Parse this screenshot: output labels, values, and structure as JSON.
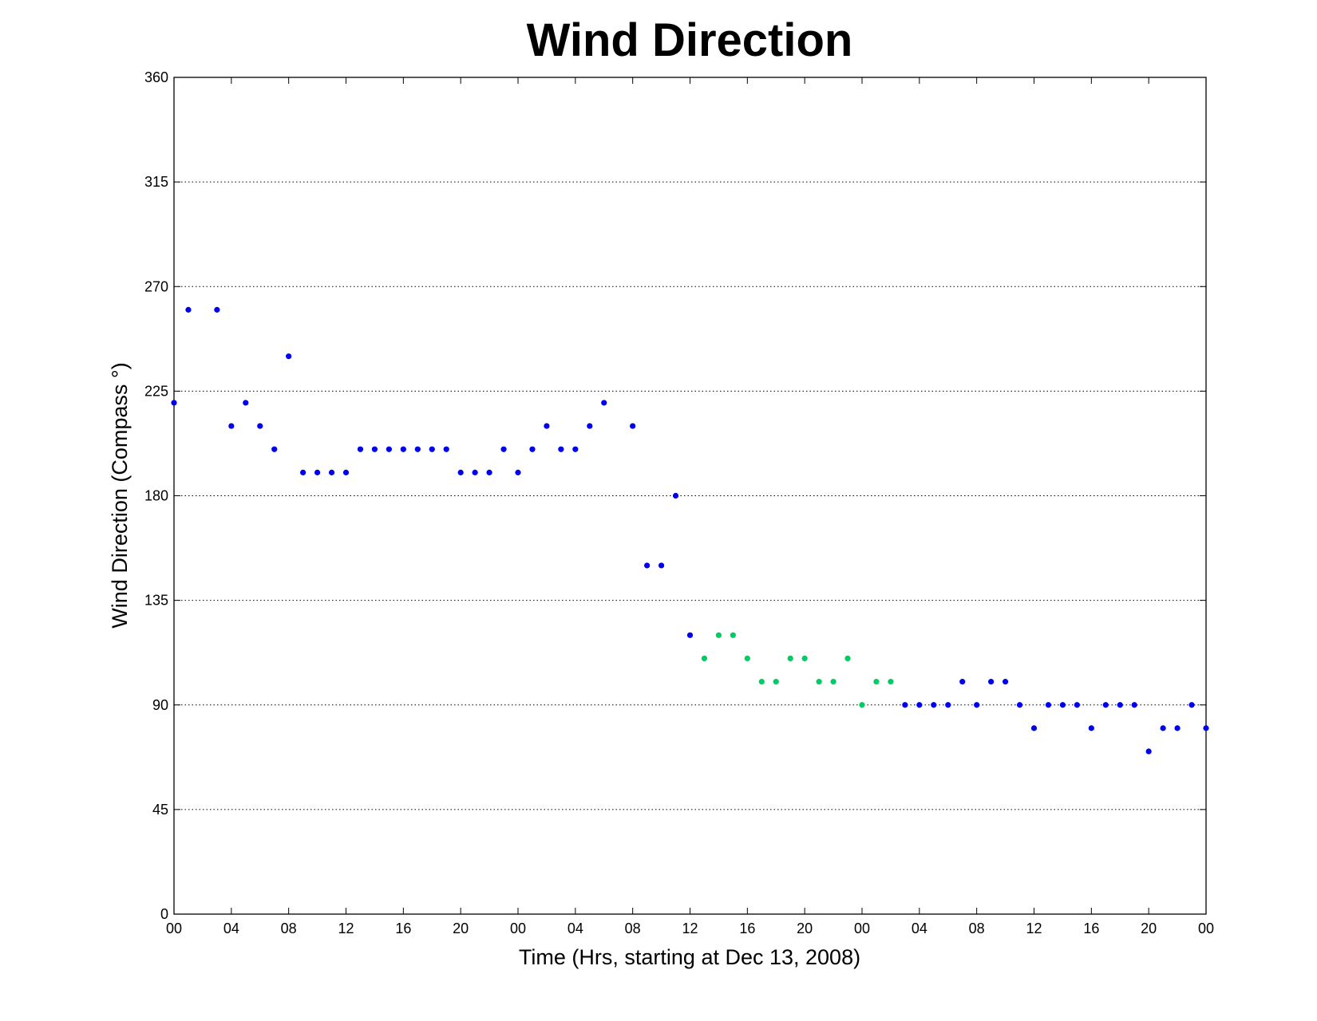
{
  "chart_data": {
    "type": "scatter",
    "title": "Wind Direction",
    "xlabel": "Time (Hrs, starting at Dec 13, 2008)",
    "ylabel": "Wind Direction (Compass  °)",
    "x_unit": "hours",
    "xlim": [
      0,
      72
    ],
    "ylim": [
      0,
      360
    ],
    "x_ticks": [
      0,
      4,
      8,
      12,
      16,
      20,
      24,
      28,
      32,
      36,
      40,
      44,
      48,
      52,
      56,
      60,
      64,
      68,
      72
    ],
    "x_tick_labels": [
      "00",
      "04",
      "08",
      "12",
      "16",
      "20",
      "00",
      "04",
      "08",
      "12",
      "16",
      "20",
      "00",
      "04",
      "08",
      "12",
      "16",
      "20",
      "00"
    ],
    "y_ticks": [
      0,
      45,
      90,
      135,
      180,
      225,
      270,
      315,
      360
    ],
    "y_tick_labels": [
      "0",
      "45",
      "90",
      "135",
      "180",
      "225",
      "270",
      "315",
      "360"
    ],
    "grid": "y-dotted",
    "legend": "none",
    "series": [
      {
        "color": "#0000ee",
        "points": [
          [
            0,
            220
          ],
          [
            1,
            260
          ],
          [
            3,
            260
          ],
          [
            4,
            210
          ],
          [
            5,
            220
          ],
          [
            6,
            210
          ],
          [
            7,
            200
          ],
          [
            8,
            240
          ],
          [
            9,
            190
          ],
          [
            10,
            190
          ],
          [
            11,
            190
          ],
          [
            12,
            190
          ],
          [
            13,
            200
          ],
          [
            14,
            200
          ],
          [
            15,
            200
          ],
          [
            16,
            200
          ],
          [
            17,
            200
          ],
          [
            18,
            200
          ],
          [
            19,
            200
          ],
          [
            20,
            190
          ],
          [
            21,
            190
          ],
          [
            22,
            190
          ],
          [
            23,
            200
          ],
          [
            24,
            190
          ],
          [
            25,
            200
          ],
          [
            26,
            210
          ],
          [
            27,
            200
          ],
          [
            28,
            200
          ],
          [
            29,
            210
          ],
          [
            30,
            220
          ],
          [
            32,
            210
          ],
          [
            33,
            150
          ],
          [
            34,
            150
          ],
          [
            35,
            180
          ],
          [
            36,
            120
          ],
          [
            51,
            90
          ],
          [
            52,
            90
          ],
          [
            53,
            90
          ],
          [
            54,
            90
          ],
          [
            55,
            100
          ],
          [
            56,
            90
          ],
          [
            57,
            100
          ],
          [
            58,
            100
          ],
          [
            59,
            90
          ],
          [
            60,
            80
          ],
          [
            61,
            90
          ],
          [
            62,
            90
          ],
          [
            63,
            90
          ],
          [
            64,
            80
          ],
          [
            65,
            90
          ],
          [
            66,
            90
          ],
          [
            67,
            90
          ],
          [
            68,
            70
          ],
          [
            69,
            80
          ],
          [
            70,
            80
          ],
          [
            71,
            90
          ],
          [
            72,
            80
          ]
        ]
      },
      {
        "color": "#00cc66",
        "points": [
          [
            37,
            110
          ],
          [
            38,
            120
          ],
          [
            39,
            120
          ],
          [
            40,
            110
          ],
          [
            41,
            100
          ],
          [
            42,
            100
          ],
          [
            43,
            110
          ],
          [
            44,
            110
          ],
          [
            45,
            100
          ],
          [
            46,
            100
          ],
          [
            47,
            110
          ],
          [
            48,
            90
          ],
          [
            49,
            100
          ],
          [
            50,
            100
          ]
        ]
      }
    ]
  }
}
